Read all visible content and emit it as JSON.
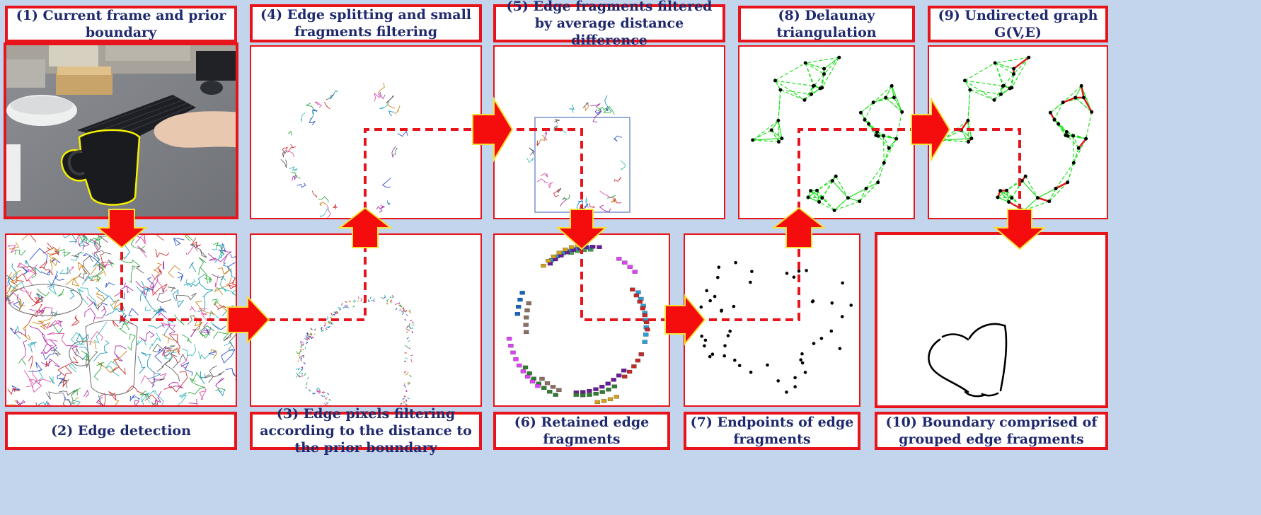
{
  "colors": {
    "background": "#c3d5ec",
    "frame_border": "#e8141b",
    "label_text": "#1f2a6e",
    "arrow_fill": "#f50d0d",
    "arrow_outline": "#f5e13a",
    "dashed_line": "#e8141b",
    "triangulation_edges": "#22e022",
    "graph_edges": "#e01818",
    "mug_outline": "#f5f000"
  },
  "steps": [
    {
      "id": 1,
      "label": "(1) Current frame and prior boundary"
    },
    {
      "id": 2,
      "label": "(2) Edge detection"
    },
    {
      "id": 3,
      "label": "(3) Edge pixels filtering according to the distance to the prior boundary"
    },
    {
      "id": 4,
      "label": "(4) Edge splitting and small fragments filtering"
    },
    {
      "id": 5,
      "label": "(5) Edge fragments filtered by average distance difference"
    },
    {
      "id": 6,
      "label": "(6) Retained edge fragments"
    },
    {
      "id": 7,
      "label": "(7) Endpoints of edge fragments"
    },
    {
      "id": 8,
      "label": "(8) Delaunay triangulation"
    },
    {
      "id": 9,
      "label": "(9) Undirected graph G(V,E)"
    },
    {
      "id": 10,
      "label": "(10) Boundary comprised of grouped edge fragments"
    }
  ]
}
